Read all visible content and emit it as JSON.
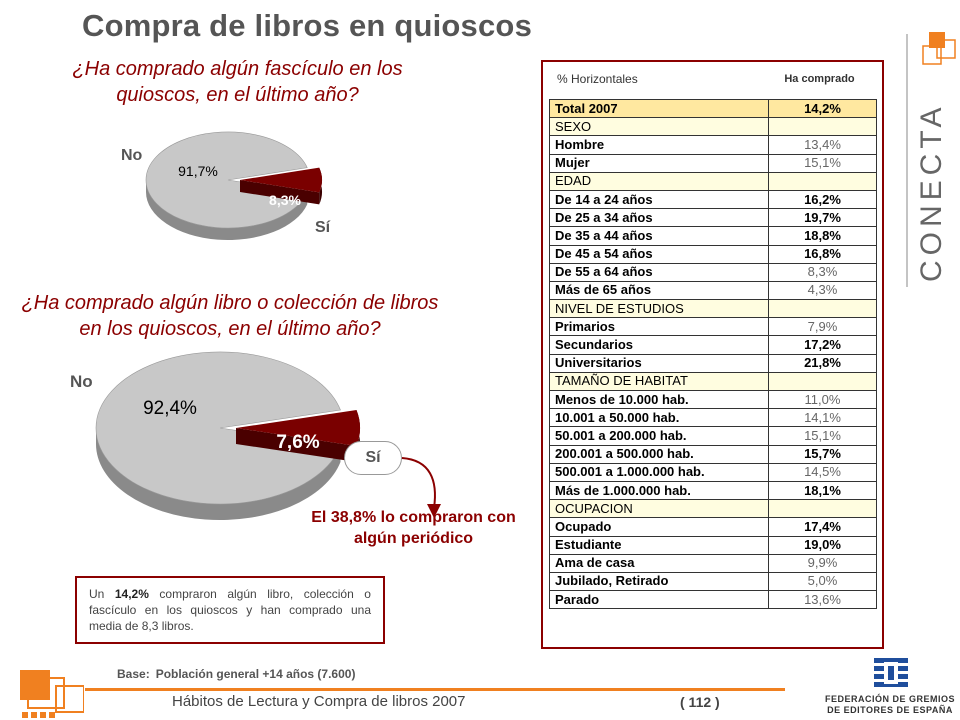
{
  "title": "Compra de libros en quioscos",
  "q1": {
    "question": "¿Ha comprado algún fascículo en los quioscos, en el último año?",
    "no_label": "No",
    "si_label": "Sí",
    "no_value": "91,7%",
    "si_value": "8,3%"
  },
  "q2": {
    "question": "¿Ha comprado algún libro o colección de libros en los quioscos, en el último año?",
    "no_label": "No",
    "si_label": "Sí",
    "no_value": "92,4%",
    "si_value": "7,6%",
    "periodico_note": "El 38,8% lo compraron con algún periódico"
  },
  "chart_data": [
    {
      "type": "pie",
      "categories": [
        "No",
        "Sí"
      ],
      "values": [
        91.7,
        8.3
      ],
      "title": "¿Ha comprado algún fascículo en los quioscos, en el último año?",
      "colors": [
        "#c8c8c8",
        "#7a0000"
      ]
    },
    {
      "type": "pie",
      "categories": [
        "No",
        "Sí"
      ],
      "values": [
        92.4,
        7.6
      ],
      "title": "¿Ha comprado algún libro o colección de libros en los quioscos, en el último año?",
      "colors": [
        "#c8c8c8",
        "#7a0000"
      ]
    }
  ],
  "summary": {
    "pre": "Un ",
    "highlight": "14,2%",
    "post": " compraron algún libro, colección o fascículo en los quioscos y han comprado una media de 8,3 libros."
  },
  "table": {
    "header_left": "% Horizontales",
    "header_right": "Ha comprado",
    "rows": [
      {
        "label": "Total 2007",
        "value": "14,2%"
      },
      {
        "label": "SEXO",
        "value": ""
      },
      {
        "label": "Hombre",
        "value": "13,4%"
      },
      {
        "label": "Mujer",
        "value": "15,1%"
      },
      {
        "label": "EDAD",
        "value": ""
      },
      {
        "label": "De 14 a 24 años",
        "value": "16,2%"
      },
      {
        "label": "De 25 a 34 años",
        "value": "19,7%"
      },
      {
        "label": "De 35 a 44 años",
        "value": "18,8%"
      },
      {
        "label": "De 45 a 54 años",
        "value": "16,8%"
      },
      {
        "label": "De 55 a 64 años",
        "value": "8,3%"
      },
      {
        "label": "Más de 65 años",
        "value": "4,3%"
      },
      {
        "label": "NIVEL DE ESTUDIOS",
        "value": ""
      },
      {
        "label": "Primarios",
        "value": "7,9%"
      },
      {
        "label": "Secundarios",
        "value": "17,2%"
      },
      {
        "label": "Universitarios",
        "value": "21,8%"
      },
      {
        "label": "TAMAÑO DE HABITAT",
        "value": ""
      },
      {
        "label": "Menos de 10.000 hab.",
        "value": "11,0%"
      },
      {
        "label": "10.001 a 50.000 hab.",
        "value": "14,1%"
      },
      {
        "label": "50.001 a 200.000 hab.",
        "value": "15,1%"
      },
      {
        "label": "200.001 a 500.000 hab.",
        "value": "15,7%"
      },
      {
        "label": "500.001 a 1.000.000 hab.",
        "value": "14,5%"
      },
      {
        "label": "Más de 1.000.000 hab.",
        "value": "18,1%"
      },
      {
        "label": "OCUPACION",
        "value": ""
      },
      {
        "label": "Ocupado",
        "value": "17,4%"
      },
      {
        "label": "Estudiante",
        "value": "19,0%"
      },
      {
        "label": "Ama de casa",
        "value": "9,9%"
      },
      {
        "label": "Jubilado, Retirado",
        "value": "5,0%"
      },
      {
        "label": "Parado",
        "value": "13,6%"
      }
    ]
  },
  "base": {
    "label": "Base:",
    "text": "Población general +14 años (7.600)"
  },
  "footer": {
    "text": "Hábitos de Lectura y Compra de libros 2007",
    "page": "( 112 )"
  },
  "brand": {
    "conecta": "CONECTA",
    "federacion_line1": "FEDERACIÓN DE GREMIOS",
    "federacion_line2": "DE EDITORES DE ESPAÑA",
    "accent": "#f08020",
    "dark_red": "#8b0000"
  }
}
